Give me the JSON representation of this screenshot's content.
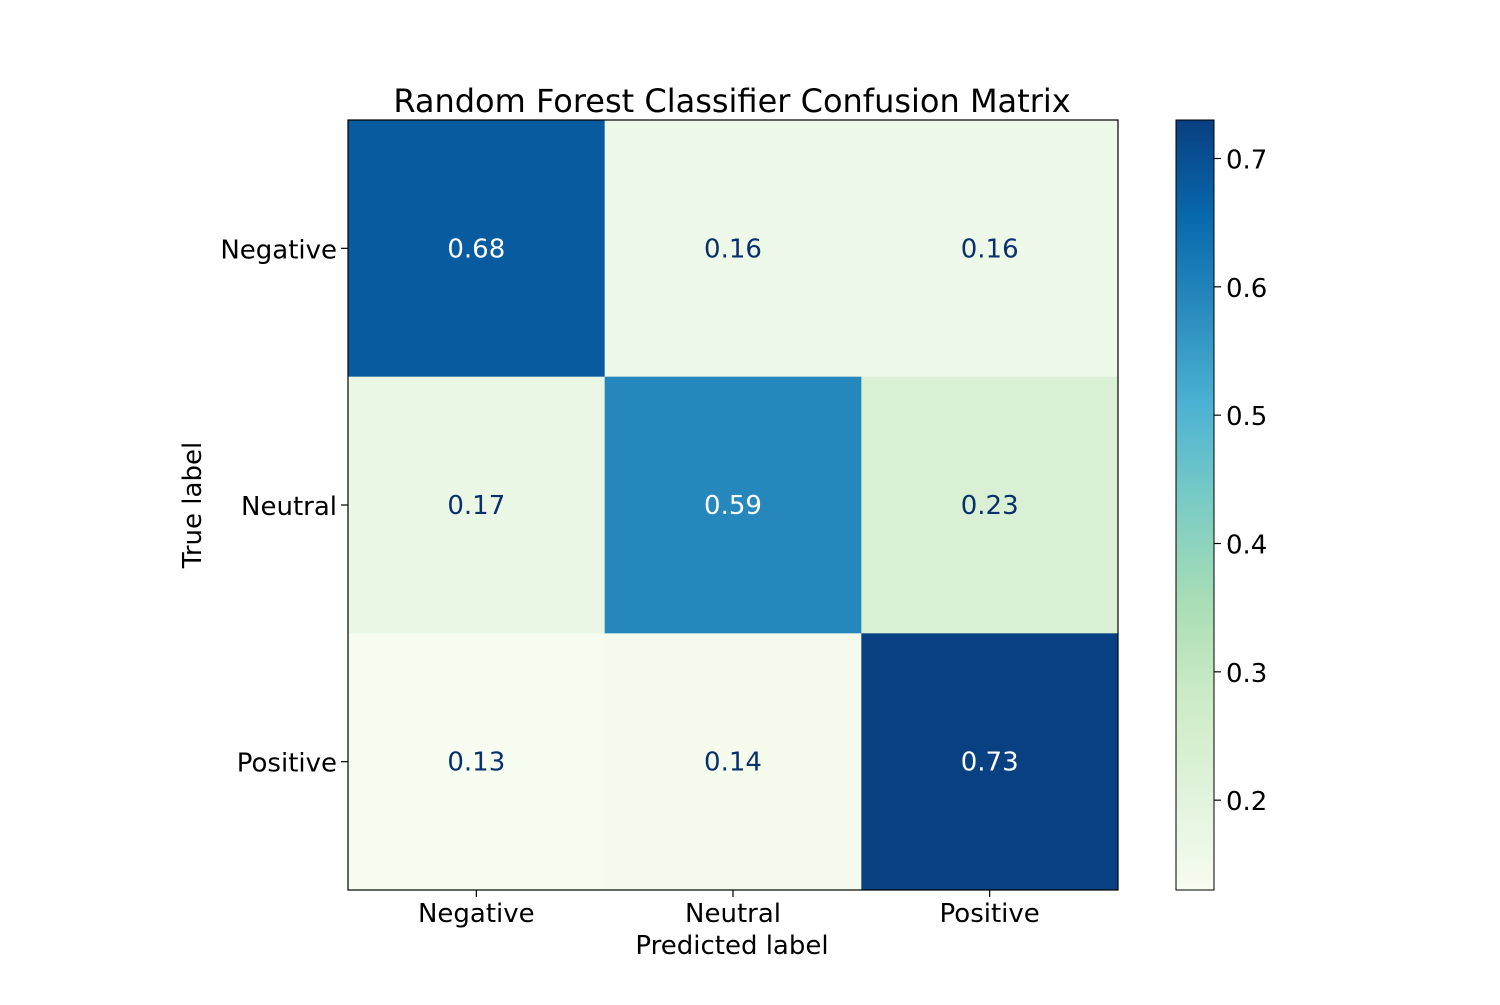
{
  "chart_data": {
    "type": "heatmap",
    "title": "Random Forest Classifier Confusion Matrix",
    "xlabel": "Predicted label",
    "ylabel": "True label",
    "x_categories": [
      "Negative",
      "Neutral",
      "Positive"
    ],
    "y_categories": [
      "Negative",
      "Neutral",
      "Positive"
    ],
    "values": [
      [
        0.68,
        0.16,
        0.16
      ],
      [
        0.17,
        0.59,
        0.23
      ],
      [
        0.13,
        0.14,
        0.73
      ]
    ],
    "colormap": "GnBu",
    "colorbar": {
      "range": [
        0.13,
        0.73
      ],
      "ticks": [
        0.2,
        0.3,
        0.4,
        0.5,
        0.6,
        0.7
      ],
      "tick_labels": [
        "0.2",
        "0.3",
        "0.4",
        "0.5",
        "0.6",
        "0.7"
      ]
    },
    "colors": {
      "cell_text_dark": "#08306b",
      "cell_text_light": "#ffffff",
      "axis": "#000000"
    }
  }
}
